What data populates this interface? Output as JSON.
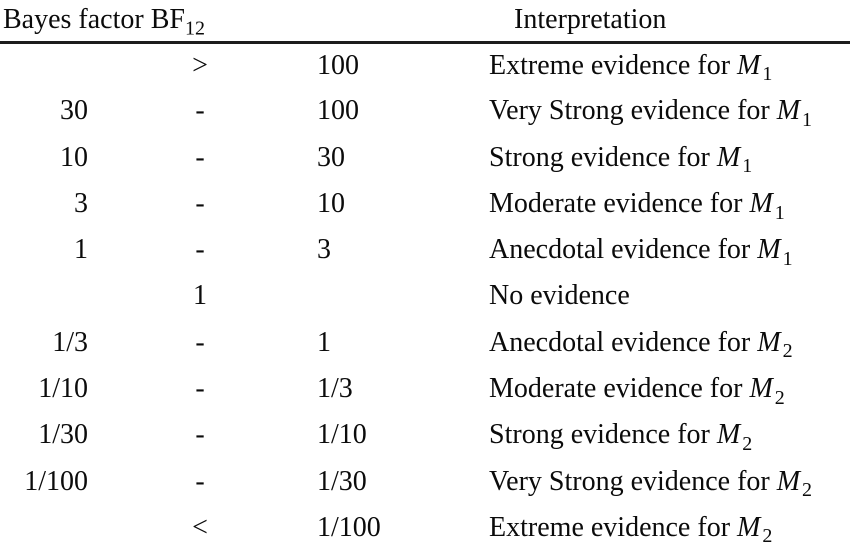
{
  "table": {
    "header": {
      "bf_text": "Bayes factor BF",
      "bf_sub": "12",
      "interpretation": "Interpretation"
    },
    "rows": [
      {
        "lower": "",
        "sep": ">",
        "upper": "100",
        "interp": {
          "text": "Extreme evidence for ",
          "model": "M",
          "sub": "1"
        }
      },
      {
        "lower": "30",
        "sep": "-",
        "upper": "100",
        "interp": {
          "text": "Very Strong evidence for ",
          "model": "M",
          "sub": "1"
        }
      },
      {
        "lower": "10",
        "sep": "-",
        "upper": "30",
        "interp": {
          "text": "Strong evidence for ",
          "model": "M",
          "sub": "1"
        }
      },
      {
        "lower": "3",
        "sep": "-",
        "upper": "10",
        "interp": {
          "text": "Moderate evidence for ",
          "model": "M",
          "sub": "1"
        }
      },
      {
        "lower": "1",
        "sep": "-",
        "upper": "3",
        "interp": {
          "text": "Anecdotal evidence for ",
          "model": "M",
          "sub": "1"
        }
      },
      {
        "lower": "",
        "sep": "1",
        "upper": "",
        "interp": {
          "text": "No evidence"
        }
      },
      {
        "lower": "1/3",
        "sep": "-",
        "upper": "1",
        "interp": {
          "text": "Anecdotal evidence for ",
          "model": "M",
          "sub": "2"
        }
      },
      {
        "lower": "1/10",
        "sep": "-",
        "upper": "1/3",
        "interp": {
          "text": "Moderate evidence for ",
          "model": "M",
          "sub": "2"
        }
      },
      {
        "lower": "1/30",
        "sep": "-",
        "upper": "1/10",
        "interp": {
          "text": "Strong evidence for ",
          "model": "M",
          "sub": "2"
        }
      },
      {
        "lower": "1/100",
        "sep": "-",
        "upper": "1/30",
        "interp": {
          "text": "Very Strong evidence for ",
          "model": "M",
          "sub": "2"
        }
      },
      {
        "lower": "",
        "sep": "<",
        "upper": "1/100",
        "interp": {
          "text": "Extreme evidence for ",
          "model": "M",
          "sub": "2"
        }
      }
    ]
  }
}
